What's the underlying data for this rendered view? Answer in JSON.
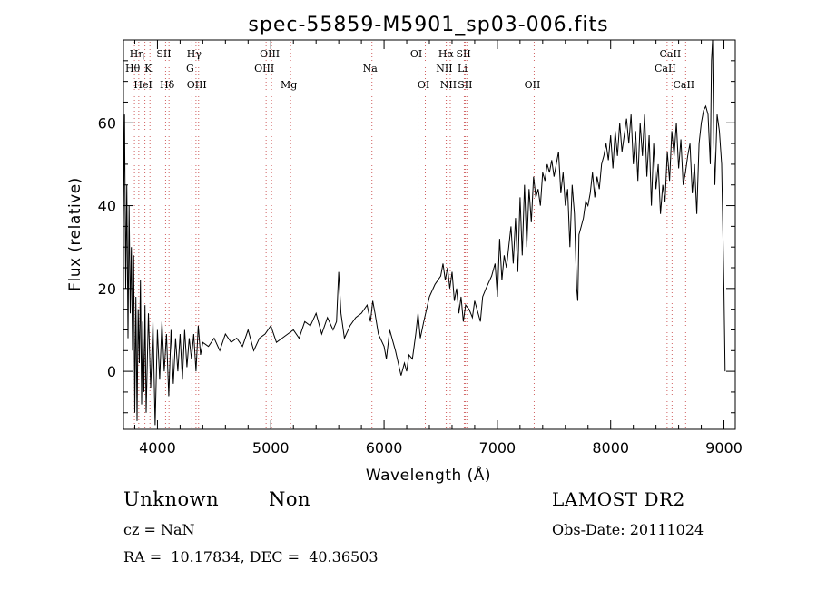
{
  "chart_data": {
    "type": "line",
    "title": "spec-55859-M5901_sp03-006.fits",
    "xlabel": "Wavelength (Å)",
    "ylabel": "Flux (relative)",
    "xlim": [
      3700,
      9100
    ],
    "ylim": [
      -14,
      80
    ],
    "xticks": [
      4000,
      5000,
      6000,
      7000,
      8000,
      9000
    ],
    "yticks": [
      0,
      20,
      40,
      60
    ],
    "series": [
      {
        "name": "flux",
        "x": [
          3700,
          3710,
          3720,
          3730,
          3740,
          3750,
          3760,
          3770,
          3780,
          3790,
          3800,
          3810,
          3820,
          3830,
          3840,
          3850,
          3860,
          3870,
          3880,
          3890,
          3900,
          3920,
          3940,
          3960,
          3980,
          4000,
          4020,
          4040,
          4060,
          4080,
          4100,
          4120,
          4140,
          4160,
          4180,
          4200,
          4220,
          4240,
          4260,
          4280,
          4300,
          4320,
          4340,
          4360,
          4380,
          4400,
          4450,
          4500,
          4550,
          4600,
          4650,
          4700,
          4750,
          4800,
          4850,
          4900,
          4950,
          5000,
          5050,
          5100,
          5150,
          5200,
          5250,
          5300,
          5350,
          5400,
          5450,
          5500,
          5550,
          5580,
          5600,
          5620,
          5650,
          5700,
          5750,
          5800,
          5850,
          5880,
          5900,
          5920,
          5950,
          6000,
          6020,
          6050,
          6100,
          6150,
          6180,
          6200,
          6220,
          6250,
          6280,
          6300,
          6320,
          6350,
          6400,
          6450,
          6500,
          6520,
          6540,
          6560,
          6580,
          6600,
          6620,
          6640,
          6660,
          6680,
          6700,
          6720,
          6750,
          6780,
          6800,
          6830,
          6850,
          6870,
          6900,
          6950,
          6980,
          7000,
          7020,
          7040,
          7060,
          7080,
          7100,
          7120,
          7140,
          7160,
          7180,
          7200,
          7220,
          7240,
          7260,
          7280,
          7300,
          7320,
          7340,
          7360,
          7380,
          7400,
          7420,
          7440,
          7460,
          7480,
          7500,
          7520,
          7540,
          7560,
          7580,
          7600,
          7620,
          7640,
          7660,
          7680,
          7700,
          7710,
          7720,
          7740,
          7760,
          7780,
          7800,
          7820,
          7840,
          7860,
          7880,
          7900,
          7920,
          7940,
          7960,
          7980,
          8000,
          8020,
          8040,
          8060,
          8080,
          8100,
          8120,
          8140,
          8160,
          8180,
          8200,
          8220,
          8240,
          8260,
          8280,
          8300,
          8320,
          8340,
          8360,
          8380,
          8400,
          8420,
          8440,
          8460,
          8480,
          8500,
          8520,
          8540,
          8560,
          8580,
          8600,
          8620,
          8640,
          8660,
          8680,
          8700,
          8720,
          8740,
          8760,
          8780,
          8800,
          8820,
          8840,
          8860,
          8880,
          8890,
          8900,
          8910,
          8920,
          8940,
          8960,
          8980,
          9000,
          9010
        ],
        "y": [
          35,
          62,
          20,
          45,
          8,
          40,
          14,
          30,
          5,
          28,
          -10,
          18,
          -12,
          15,
          2,
          22,
          -8,
          12,
          -5,
          16,
          -10,
          14,
          -4,
          12,
          -13,
          10,
          -2,
          12,
          0,
          9,
          -6,
          10,
          -3,
          8,
          0,
          9,
          -2,
          10,
          1,
          8,
          3,
          9,
          0,
          11,
          4,
          7,
          6,
          8,
          5,
          9,
          7,
          8,
          6,
          10,
          5,
          8,
          9,
          11,
          7,
          8,
          9,
          10,
          8,
          12,
          11,
          14,
          9,
          13,
          10,
          12,
          24,
          14,
          8,
          11,
          13,
          14,
          16,
          12,
          17,
          14,
          9,
          6,
          3,
          10,
          5,
          -1,
          2,
          0,
          4,
          3,
          9,
          14,
          8,
          12,
          18,
          21,
          23,
          26,
          22,
          25,
          20,
          24,
          17,
          20,
          14,
          18,
          12,
          16,
          15,
          13,
          17,
          14,
          12,
          18,
          20,
          23,
          26,
          18,
          32,
          22,
          28,
          25,
          30,
          35,
          26,
          37,
          24,
          42,
          28,
          45,
          30,
          44,
          36,
          47,
          42,
          44,
          40,
          48,
          46,
          50,
          48,
          51,
          47,
          50,
          53,
          43,
          48,
          40,
          44,
          30,
          45,
          38,
          20,
          17,
          33,
          35,
          37,
          41,
          40,
          43,
          48,
          42,
          47,
          44,
          50,
          52,
          55,
          51,
          57,
          49,
          58,
          52,
          60,
          53,
          57,
          61,
          55,
          62,
          50,
          58,
          46,
          60,
          52,
          62,
          47,
          57,
          40,
          55,
          44,
          50,
          38,
          45,
          41,
          53,
          46,
          58,
          52,
          60,
          49,
          56,
          45,
          48,
          52,
          55,
          43,
          50,
          38,
          55,
          60,
          63,
          64,
          62,
          50,
          75,
          80,
          55,
          45,
          62,
          58,
          50,
          20,
          0
        ]
      }
    ],
    "lines": [
      {
        "name": "Hη",
        "wave": 3835,
        "row": 1
      },
      {
        "name": "Hθ",
        "wave": 3797,
        "row": 2
      },
      {
        "name": "K",
        "wave": 3934,
        "row": 2
      },
      {
        "name": "HeI",
        "wave": 3889,
        "row": 3
      },
      {
        "name": "SII",
        "wave": 4072,
        "row": 1
      },
      {
        "name": "Hδ",
        "wave": 4102,
        "row": 3
      },
      {
        "name": "Hγ",
        "wave": 4340,
        "row": 1
      },
      {
        "name": "G",
        "wave": 4304,
        "row": 2
      },
      {
        "name": "OIII",
        "wave": 4363,
        "row": 3
      },
      {
        "name": "OIII",
        "wave": 5007,
        "row": 1
      },
      {
        "name": "OIII",
        "wave": 4959,
        "row": 2
      },
      {
        "name": "Mg",
        "wave": 5175,
        "row": 3
      },
      {
        "name": "Na",
        "wave": 5893,
        "row": 2
      },
      {
        "name": "OI",
        "wave": 6300,
        "row": 1
      },
      {
        "name": "OI",
        "wave": 6364,
        "row": 3
      },
      {
        "name": "Hα",
        "wave": 6563,
        "row": 1
      },
      {
        "name": "SII",
        "wave": 6717,
        "row": 1
      },
      {
        "name": "NII",
        "wave": 6548,
        "row": 2
      },
      {
        "name": "Li",
        "wave": 6708,
        "row": 2
      },
      {
        "name": "NII",
        "wave": 6584,
        "row": 3
      },
      {
        "name": "SII",
        "wave": 6731,
        "row": 3
      },
      {
        "name": "OII",
        "wave": 7325,
        "row": 3
      },
      {
        "name": "CaII",
        "wave": 8542,
        "row": 1
      },
      {
        "name": "CaII",
        "wave": 8498,
        "row": 2
      },
      {
        "name": "CaII",
        "wave": 8662,
        "row": 3
      }
    ]
  },
  "info": {
    "object_class": "Unknown",
    "object_subclass": "Non",
    "survey": "LAMOST DR2",
    "cz": "cz = NaN",
    "obs_date": "Obs-Date: 20111024",
    "radec": "RA =  10.17834, DEC =  40.36503"
  },
  "colors": {
    "line_marker": "#d06060",
    "axis": "#000000",
    "spectrum": "#000000"
  }
}
